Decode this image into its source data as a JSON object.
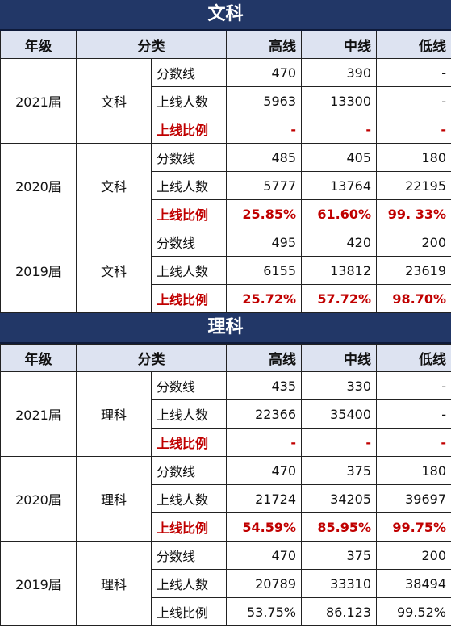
{
  "sections": [
    {
      "title": "文科",
      "headers": {
        "grade": "年级",
        "category": "分类",
        "high": "高线",
        "mid": "中线",
        "low": "低线"
      },
      "blocks": [
        {
          "year": "2021届",
          "subject": "文科",
          "rows": [
            {
              "label": "分数线",
              "high": "470",
              "mid": "390",
              "low": "-"
            },
            {
              "label": "上线人数",
              "high": "5963",
              "mid": "13300",
              "low": "-"
            },
            {
              "label": "上线比例",
              "high": "-",
              "mid": "-",
              "low": "-"
            }
          ]
        },
        {
          "year": "2020届",
          "subject": "文科",
          "rows": [
            {
              "label": "分数线",
              "high": "485",
              "mid": "405",
              "low": "180"
            },
            {
              "label": "上线人数",
              "high": "5777",
              "mid": "13764",
              "low": "22195"
            },
            {
              "label": "上线比例",
              "high": "25.85%",
              "mid": "61.60%",
              "low": "99. 33%"
            }
          ]
        },
        {
          "year": "2019届",
          "subject": "文科",
          "rows": [
            {
              "label": "分数线",
              "high": "495",
              "mid": "420",
              "low": "200"
            },
            {
              "label": "上线人数",
              "high": "6155",
              "mid": "13812",
              "low": "23619"
            },
            {
              "label": "上线比例",
              "high": "25.72%",
              "mid": "57.72%",
              "low": "98.70%"
            }
          ]
        }
      ]
    },
    {
      "title": "理科",
      "headers": {
        "grade": "年级",
        "category": "分类",
        "high": "高线",
        "mid": "中线",
        "low": "低线"
      },
      "blocks": [
        {
          "year": "2021届",
          "subject": "理科",
          "rows": [
            {
              "label": "分数线",
              "high": "435",
              "mid": "330",
              "low": "-"
            },
            {
              "label": "上线人数",
              "high": "22366",
              "mid": "35400",
              "low": "-"
            },
            {
              "label": "上线比例",
              "high": "-",
              "mid": "-",
              "low": "-"
            }
          ]
        },
        {
          "year": "2020届",
          "subject": "理科",
          "rows": [
            {
              "label": "分数线",
              "high": "470",
              "mid": "375",
              "low": "180"
            },
            {
              "label": "上线人数",
              "high": "21724",
              "mid": "34205",
              "low": "39697"
            },
            {
              "label": "上线比例",
              "high": "54.59%",
              "mid": "85.95%",
              "low": "99.75%"
            }
          ]
        },
        {
          "year": "2019届",
          "subject": "理科",
          "rows": [
            {
              "label": "分数线",
              "high": "470",
              "mid": "375",
              "low": "200"
            },
            {
              "label": "上线人数",
              "high": "20789",
              "mid": "33310",
              "low": "38494"
            },
            {
              "label": "上线比例",
              "high": "53.75%",
              "mid": "86.123",
              "low": "99.52%"
            }
          ]
        }
      ]
    }
  ]
}
